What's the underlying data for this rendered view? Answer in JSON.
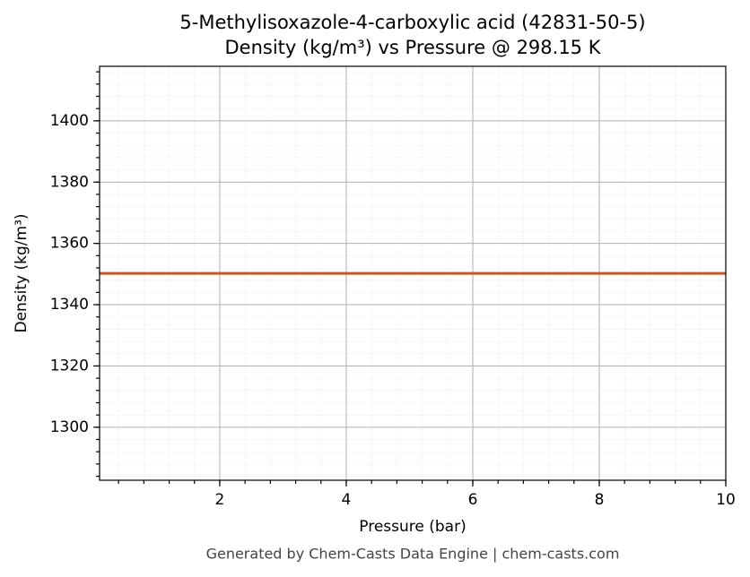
{
  "chart_data": {
    "type": "line",
    "title": "5-Methylisoxazole-4-carboxylic acid (42831-50-5)",
    "subtitle": "Density (kg/m³) vs Pressure @ 298.15 K",
    "x_label": "Pressure (bar)",
    "y_label": "Density (kg/m³)",
    "footer": "Generated by Chem-Casts Data Engine | chem-casts.com",
    "x": [
      0.1,
      10
    ],
    "series": [
      {
        "name": "Density",
        "color": "#c8552a",
        "values": [
          1350.2,
          1350.2
        ]
      }
    ],
    "xlim": [
      0.1,
      10
    ],
    "xticks": [
      2,
      4,
      6,
      8,
      10
    ],
    "ylim": [
      1282.7,
      1417.8
    ],
    "yticks": [
      1300,
      1320,
      1340,
      1360,
      1380,
      1400
    ],
    "grid": true
  }
}
